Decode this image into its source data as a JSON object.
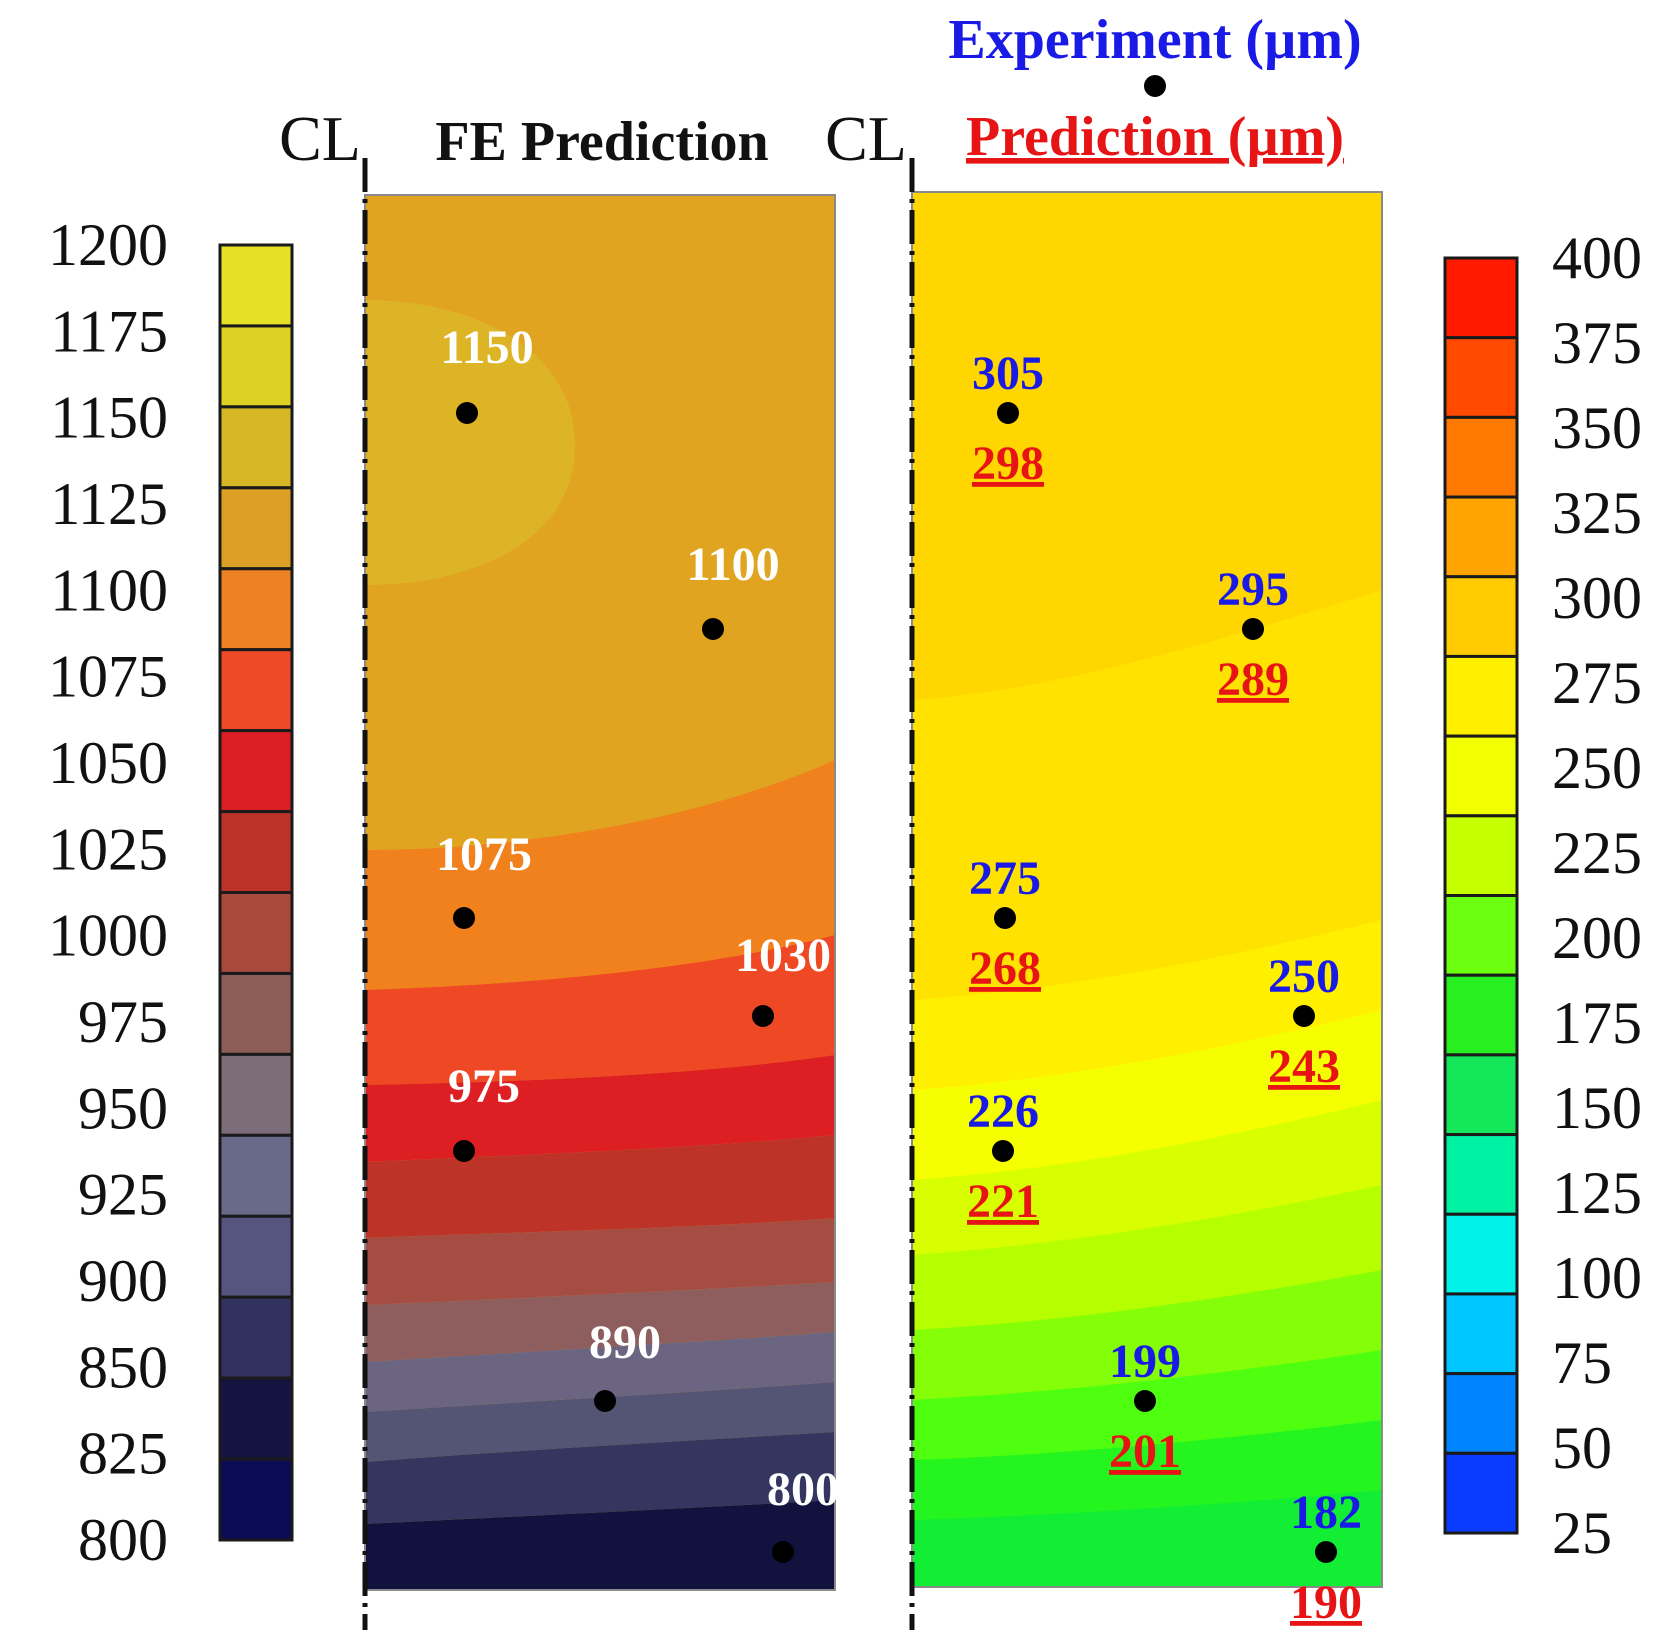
{
  "chart_data": [
    {
      "type": "heatmap",
      "title": "FE Prediction",
      "centerline_label": "CL",
      "colorbar": {
        "ticks": [
          1200,
          1175,
          1150,
          1125,
          1100,
          1075,
          1050,
          1025,
          1000,
          975,
          950,
          925,
          900,
          850,
          825,
          800
        ],
        "colors": [
          "#e6e026",
          "#ddd125",
          "#d6b826",
          "#de9f26",
          "#ef8125",
          "#ef4a26",
          "#dc1e24",
          "#bc3228",
          "#a84a3e",
          "#8f5d58",
          "#7c6c7a",
          "#69698a",
          "#555580",
          "#32325e",
          "#141441",
          "#0c0c56"
        ]
      },
      "bands_top_to_bottom": [
        "#ddb426",
        "#e0a421",
        "#f0811d",
        "#ef4824",
        "#dd1e22",
        "#bd3327",
        "#a54d43",
        "#8e5d5d",
        "#6b6582",
        "#545475",
        "#35365f",
        "#11133e",
        "#0b0f66"
      ],
      "points": [
        {
          "label": "1150",
          "value": 1150
        },
        {
          "label": "1100",
          "value": 1100
        },
        {
          "label": "1075",
          "value": 1075
        },
        {
          "label": "1030",
          "value": 1030
        },
        {
          "label": "975",
          "value": 975
        },
        {
          "label": "890",
          "value": 890
        },
        {
          "label": "800",
          "value": 800
        }
      ]
    },
    {
      "type": "heatmap",
      "title": "Prediction (µm)",
      "legend_experiment": "Experiment (µm)",
      "legend_prediction": "Prediction (µm)",
      "centerline_label": "CL",
      "colorbar": {
        "ticks": [
          400,
          375,
          350,
          325,
          300,
          275,
          250,
          225,
          200,
          175,
          150,
          125,
          100,
          75,
          50,
          25
        ],
        "colors": [
          "#ff1a00",
          "#ff4a00",
          "#ff7800",
          "#ffa400",
          "#ffcb00",
          "#fff000",
          "#f2ff00",
          "#c6ff00",
          "#6dff10",
          "#28f020",
          "#14e85a",
          "#00f3a2",
          "#00f2e8",
          "#00c7ff",
          "#0084ff",
          "#0a3cff"
        ]
      },
      "bands_top_to_bottom": [
        "#ffd400",
        "#ffc400",
        "#ffd600",
        "#ffe200",
        "#fff000",
        "#f5ff00",
        "#d7ff00",
        "#b6ff00",
        "#85ff08",
        "#4fff10",
        "#25f51e",
        "#12ee34"
      ],
      "points": [
        {
          "experiment": "305",
          "prediction": "298"
        },
        {
          "experiment": "295",
          "prediction": "289"
        },
        {
          "experiment": "275",
          "prediction": "268"
        },
        {
          "experiment": "250",
          "prediction": "243"
        },
        {
          "experiment": "226",
          "prediction": "221"
        },
        {
          "experiment": "199",
          "prediction": "201"
        },
        {
          "experiment": "182",
          "prediction": "190"
        }
      ]
    }
  ]
}
